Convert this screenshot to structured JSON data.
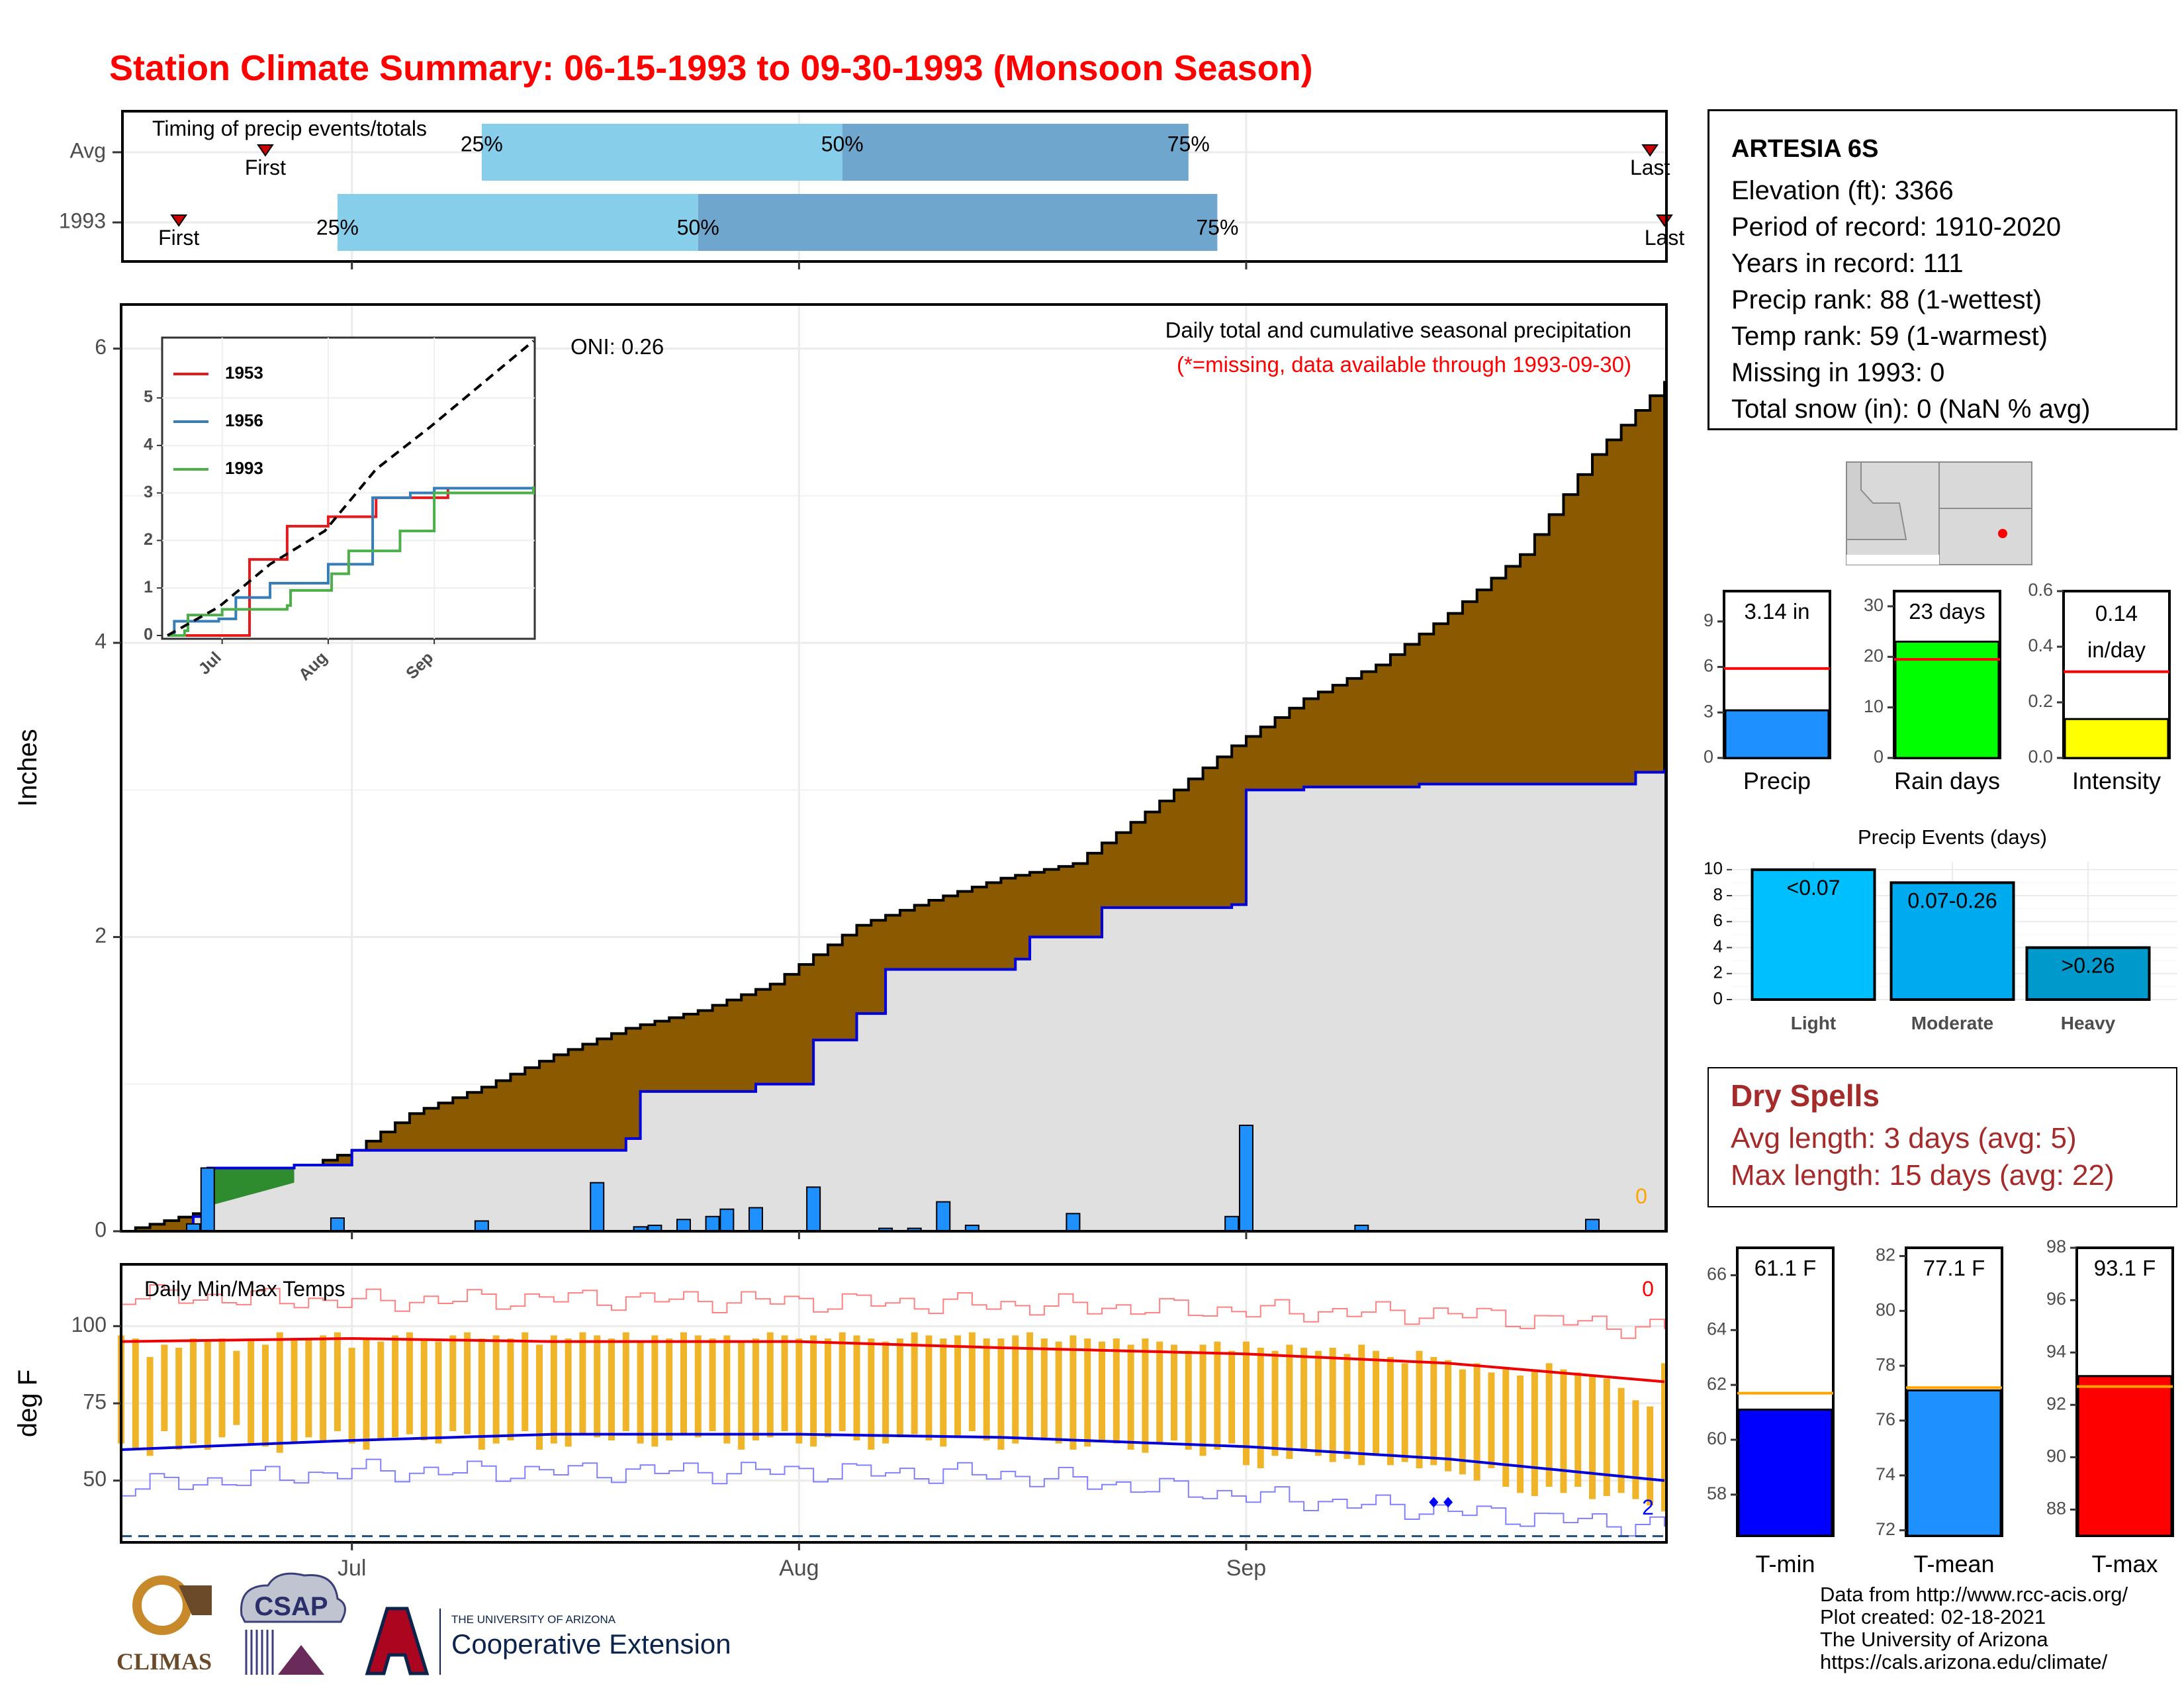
{
  "title": "Station Climate Summary: 06-15-1993 to 09-30-1993 (Monsoon Season)",
  "timing_panel": {
    "label": "Timing of precip events/totals",
    "rows": [
      "Avg",
      "1993"
    ],
    "pct_labels": [
      "25%",
      "50%",
      "75%"
    ],
    "first_label": "First",
    "last_label": "Last"
  },
  "main_panel": {
    "ylabel": "Inches",
    "yticks": [
      "0",
      "2",
      "4",
      "6"
    ],
    "annotation_title": "Daily total and cumulative seasonal precipitation",
    "annotation_missing": "(*=missing, data available through 1993-09-30)",
    "oni": "ONI: 0.26",
    "corner_value": "0"
  },
  "inset": {
    "yticks": [
      "0",
      "1",
      "2",
      "3",
      "4",
      "5"
    ],
    "xticks": [
      "Jul",
      "Aug",
      "Sep"
    ],
    "legend": [
      {
        "name": "1953",
        "color": "#e41a1c"
      },
      {
        "name": "1956",
        "color": "#377eb8"
      },
      {
        "name": "1993",
        "color": "#4daf4a"
      }
    ]
  },
  "temp_panel": {
    "label": "Daily Min/Max Temps",
    "ylabel": "deg F",
    "yticks": [
      "50",
      "75",
      "100"
    ],
    "corner_top": "0",
    "corner_bottom": "2"
  },
  "xaxis": {
    "ticks": [
      "Jul",
      "Aug",
      "Sep"
    ]
  },
  "station_info": {
    "name": "ARTESIA 6S",
    "lines": [
      "Elevation (ft): 3366",
      "Period of record: 1910-2020",
      "Years in record: 111",
      "Precip rank: 88 (1-wettest)",
      "Temp rank: 59 (1-warmest)",
      "Missing in 1993: 0",
      "Total snow (in): 0 (NaN % avg)"
    ]
  },
  "summary_bars": [
    {
      "label": "Precip",
      "value_text": "3.14 in",
      "value": 3.14,
      "avg": 5.9,
      "ymax": 11,
      "ticks": [
        "0",
        "3",
        "6",
        "9"
      ],
      "tick_vals": [
        0,
        3,
        6,
        9
      ],
      "color": "#1e90ff",
      "avg_color": "#ff0000"
    },
    {
      "label": "Rain days",
      "value_text": "23 days",
      "value": 23,
      "avg": 19.5,
      "ymax": 33,
      "ticks": [
        "0",
        "10",
        "20",
        "30"
      ],
      "tick_vals": [
        0,
        10,
        20,
        30
      ],
      "color": "#00ff00",
      "avg_color": "#ff0000"
    },
    {
      "label": "Intensity",
      "value_text_lines": [
        "0.14",
        "in/day"
      ],
      "value": 0.14,
      "avg": 0.31,
      "ymax": 0.6,
      "ticks": [
        "0.0",
        "0.2",
        "0.4",
        "0.6"
      ],
      "tick_vals": [
        0,
        0.2,
        0.4,
        0.6
      ],
      "color": "#ffff00",
      "avg_color": "#ff0000"
    }
  ],
  "precip_events": {
    "title": "Precip Events (days)",
    "categories": [
      "Light",
      "Moderate",
      "Heavy"
    ],
    "bar_labels": [
      "<0.07",
      "0.07-0.26",
      ">0.26"
    ],
    "values": [
      10,
      9,
      4
    ],
    "ticks": [
      "0",
      "2",
      "4",
      "6",
      "8",
      "10"
    ],
    "colors": [
      "#00bfff",
      "#00aaee",
      "#0099cc"
    ]
  },
  "dry_spells": {
    "title": "Dry Spells",
    "avg_length": "Avg length: 3 days (avg: 5)",
    "max_length": "Max length: 15 days (avg: 22)"
  },
  "temp_bars": [
    {
      "label": "T-min",
      "value_text": "61.1 F",
      "value": 61.1,
      "avg": 61.7,
      "ymin": 56.5,
      "ymax": 67.0,
      "ticks": [
        "58",
        "60",
        "62",
        "64",
        "66"
      ],
      "tick_vals": [
        58,
        60,
        62,
        64,
        66
      ],
      "color": "#0000ff"
    },
    {
      "label": "T-mean",
      "value_text": "77.1 F",
      "value": 77.1,
      "avg": 77.2,
      "ymin": 71.8,
      "ymax": 82.3,
      "ticks": [
        "72",
        "74",
        "76",
        "78",
        "80",
        "82"
      ],
      "tick_vals": [
        72,
        74,
        76,
        78,
        80,
        82
      ],
      "color": "#1e90ff"
    },
    {
      "label": "T-max",
      "value_text": "93.1 F",
      "value": 93.1,
      "avg": 92.7,
      "ymin": 87.0,
      "ymax": 98.0,
      "ticks": [
        "88",
        "90",
        "92",
        "94",
        "96",
        "98"
      ],
      "tick_vals": [
        88,
        90,
        92,
        94,
        96,
        98
      ],
      "color": "#ff0000"
    }
  ],
  "credits": [
    "Data from http://www.rcc-acis.org/",
    "Plot created: 02-18-2021",
    "The University of Arizona",
    "https://cals.arizona.edu/climate/"
  ],
  "logos": {
    "climas": "CLIMAS",
    "csap": "CSAP",
    "ua_small": "THE UNIVERSITY OF ARIZONA",
    "ua_big": "Cooperative Extension"
  },
  "chart_data": [
    {
      "type": "area",
      "title": "Daily total and cumulative seasonal precipitation",
      "ylabel": "Inches",
      "ylim": [
        0,
        6.3
      ],
      "x_range": [
        "1993-06-15",
        "1993-09-30"
      ],
      "series": [
        {
          "name": "cumulative 1993",
          "points": [
            [
              "06-15",
              0
            ],
            [
              "06-20",
              0.1
            ],
            [
              "06-21",
              0.43
            ],
            [
              "06-27",
              0.45
            ],
            [
              "07-01",
              0.55
            ],
            [
              "07-15",
              0.55
            ],
            [
              "07-20",
              0.63
            ],
            [
              "07-21",
              0.95
            ],
            [
              "07-29",
              1.0
            ],
            [
              "08-02",
              1.3
            ],
            [
              "08-05",
              1.48
            ],
            [
              "08-07",
              1.78
            ],
            [
              "08-16",
              1.85
            ],
            [
              "08-17",
              2.0
            ],
            [
              "08-22",
              2.2
            ],
            [
              "08-31",
              2.22
            ],
            [
              "09-01",
              3.0
            ],
            [
              "09-05",
              3.02
            ],
            [
              "09-13",
              3.04
            ],
            [
              "09-28",
              3.12
            ],
            [
              "09-30",
              3.14
            ]
          ]
        },
        {
          "points": [
            [
              "06-15",
              0
            ],
            [
              "06-20",
              0.12
            ],
            [
              "06-25",
              0.35
            ],
            [
              "07-01",
              0.55
            ],
            [
              "07-05",
              0.8
            ],
            [
              "07-10",
              0.98
            ],
            [
              "07-15",
              1.2
            ],
            [
              "07-20",
              1.38
            ],
            [
              "07-25",
              1.5
            ],
            [
              "07-30",
              1.68
            ],
            [
              "08-05",
              2.08
            ],
            [
              "08-10",
              2.25
            ],
            [
              "08-15",
              2.4
            ],
            [
              "08-20",
              2.5
            ],
            [
              "08-25",
              2.85
            ],
            [
              "08-31",
              3.3
            ],
            [
              "09-05",
              3.62
            ],
            [
              "09-10",
              3.85
            ],
            [
              "09-15",
              4.2
            ],
            [
              "09-20",
              4.6
            ],
            [
              "09-25",
              5.28
            ],
            [
              "09-30",
              5.78
            ]
          ]
        }
      ],
      "daily_bars": [
        [
          "06-20",
          0.05
        ],
        [
          "06-21",
          0.43
        ],
        [
          "06-30",
          0.09
        ],
        [
          "07-10",
          0.07
        ],
        [
          "07-18",
          0.33
        ],
        [
          "07-21",
          0.03
        ],
        [
          "07-22",
          0.04
        ],
        [
          "07-24",
          0.08
        ],
        [
          "07-26",
          0.1
        ],
        [
          "07-27",
          0.15
        ],
        [
          "07-29",
          0.16
        ],
        [
          "08-02",
          0.3
        ],
        [
          "08-07",
          0.02
        ],
        [
          "08-09",
          0.02
        ],
        [
          "08-11",
          0.2
        ],
        [
          "08-13",
          0.04
        ],
        [
          "08-20",
          0.12
        ],
        [
          "08-31",
          0.1
        ],
        [
          "09-01",
          0.72
        ],
        [
          "09-09",
          0.04
        ],
        [
          "09-25",
          0.08
        ]
      ]
    },
    {
      "type": "line",
      "ylim": [
        0,
        6.2
      ],
      "series": [
        {
          "name": "1953",
          "points": [
            [
              "06-15",
              0
            ],
            [
              "07-08",
              0
            ],
            [
              "07-09",
              1.6
            ],
            [
              "07-15",
              1.6
            ],
            [
              "07-20",
              2.3
            ],
            [
              "07-28",
              2.3
            ],
            [
              "08-01",
              2.5
            ],
            [
              "08-14",
              2.5
            ],
            [
              "08-15",
              2.9
            ],
            [
              "08-31",
              2.9
            ],
            [
              "09-05",
              3.1
            ],
            [
              "09-30",
              3.12
            ]
          ]
        },
        {
          "name": "1956",
          "points": [
            [
              "06-15",
              0
            ],
            [
              "06-17",
              0.3
            ],
            [
              "06-30",
              0.35
            ],
            [
              "07-05",
              0.8
            ],
            [
              "07-15",
              1.1
            ],
            [
              "07-25",
              1.1
            ],
            [
              "08-01",
              1.5
            ],
            [
              "08-10",
              1.5
            ],
            [
              "08-14",
              2.9
            ],
            [
              "08-25",
              3.0
            ],
            [
              "09-01",
              3.1
            ],
            [
              "09-30",
              3.12
            ]
          ]
        },
        {
          "name": "1993",
          "points": [
            [
              "06-15",
              0
            ],
            [
              "06-20",
              0.1
            ],
            [
              "06-21",
              0.43
            ],
            [
              "07-01",
              0.55
            ],
            [
              "07-20",
              0.63
            ],
            [
              "07-21",
              0.95
            ],
            [
              "08-02",
              1.3
            ],
            [
              "08-07",
              1.78
            ],
            [
              "08-22",
              2.2
            ],
            [
              "09-01",
              3.0
            ],
            [
              "09-30",
              3.14
            ]
          ]
        },
        {
          "name": "wettest",
          "points": [
            [
              "06-15",
              0
            ],
            [
              "06-30",
              0.6
            ],
            [
              "07-15",
              1.5
            ],
            [
              "07-31",
              2.2
            ],
            [
              "08-15",
              3.5
            ],
            [
              "08-31",
              4.4
            ],
            [
              "09-15",
              5.3
            ],
            [
              "09-30",
              6.2
            ]
          ]
        }
      ],
      "xticks": [
        "Jul",
        "Aug",
        "Sep"
      ]
    },
    {
      "type": "bar",
      "title": "Daily Min/Max Temps",
      "ylabel": "deg F",
      "ylim": [
        30,
        120
      ],
      "series": [
        {
          "name": "daily range",
          "start": "06-15",
          "low": [
            62,
            60,
            58,
            66,
            60,
            62,
            60,
            64,
            68,
            62,
            61,
            59,
            62,
            64,
            63,
            66,
            62,
            60,
            63,
            64,
            65,
            63,
            62,
            66,
            65,
            60,
            62,
            63,
            66,
            60,
            62,
            61,
            65,
            64,
            63,
            66,
            62,
            61,
            63,
            65,
            64,
            66,
            62,
            60,
            63,
            64,
            66,
            62,
            61,
            64,
            66,
            63,
            60,
            62,
            64,
            65,
            63,
            61,
            64,
            66,
            63,
            60,
            62,
            64,
            63,
            62,
            60,
            61,
            63,
            62,
            60,
            59,
            62,
            63,
            60,
            58,
            60,
            62,
            55,
            54,
            58,
            57,
            60,
            58,
            56,
            57,
            55,
            58,
            55,
            56,
            54,
            55,
            53,
            52,
            50,
            54,
            48,
            46,
            45,
            48,
            46,
            48,
            44,
            45,
            46,
            44,
            42,
            40
          ],
          "high": [
            97,
            96,
            90,
            94,
            93,
            96,
            95,
            96,
            92,
            96,
            94,
            98,
            96,
            96,
            97,
            98,
            93,
            96,
            95,
            97,
            98,
            96,
            95,
            97,
            98,
            96,
            97,
            96,
            98,
            94,
            97,
            96,
            98,
            97,
            96,
            98,
            95,
            97,
            96,
            98,
            97,
            96,
            97,
            95,
            96,
            98,
            97,
            96,
            97,
            96,
            98,
            97,
            96,
            95,
            96,
            98,
            97,
            96,
            97,
            98,
            96,
            96,
            97,
            98,
            96,
            95,
            97,
            96,
            95,
            96,
            94,
            96,
            95,
            94,
            92,
            94,
            95,
            92,
            95,
            93,
            92,
            94,
            93,
            92,
            93,
            91,
            94,
            92,
            90,
            88,
            92,
            90,
            89,
            86,
            88,
            85,
            86,
            84,
            86,
            88,
            86,
            85,
            84,
            83,
            80,
            76,
            74,
            88
          ]
        },
        {
          "name": "avg high",
          "points": [
            [
              "06-15",
              95
            ],
            [
              "07-01",
              96
            ],
            [
              "07-15",
              95
            ],
            [
              "08-01",
              95
            ],
            [
              "08-15",
              93
            ],
            [
              "09-01",
              91
            ],
            [
              "09-15",
              88
            ],
            [
              "09-30",
              82
            ]
          ]
        },
        {
          "name": "avg low",
          "points": [
            [
              "06-15",
              60
            ],
            [
              "07-01",
              63
            ],
            [
              "07-15",
              65
            ],
            [
              "08-01",
              65
            ],
            [
              "08-15",
              64
            ],
            [
              "09-01",
              61
            ],
            [
              "09-15",
              57
            ],
            [
              "09-30",
              50
            ]
          ]
        },
        {
          "name": "record high",
          "points": [
            [
              "06-15",
              110
            ],
            [
              "07-01",
              108
            ],
            [
              "07-15",
              109
            ],
            [
              "08-01",
              108
            ],
            [
              "08-15",
              107
            ],
            [
              "09-01",
              105
            ],
            [
              "09-15",
              104
            ],
            [
              "09-30",
              99
            ]
          ]
        },
        {
          "name": "record low",
          "points": [
            [
              "06-15",
              48
            ],
            [
              "07-01",
              53
            ],
            [
              "07-15",
              53
            ],
            [
              "08-01",
              53
            ],
            [
              "08-15",
              52
            ],
            [
              "09-01",
              45
            ],
            [
              "09-15",
              40
            ],
            [
              "09-30",
              35
            ]
          ]
        }
      ],
      "freeze_line": 32,
      "xticks": [
        "Jul",
        "Aug",
        "Sep"
      ]
    }
  ]
}
